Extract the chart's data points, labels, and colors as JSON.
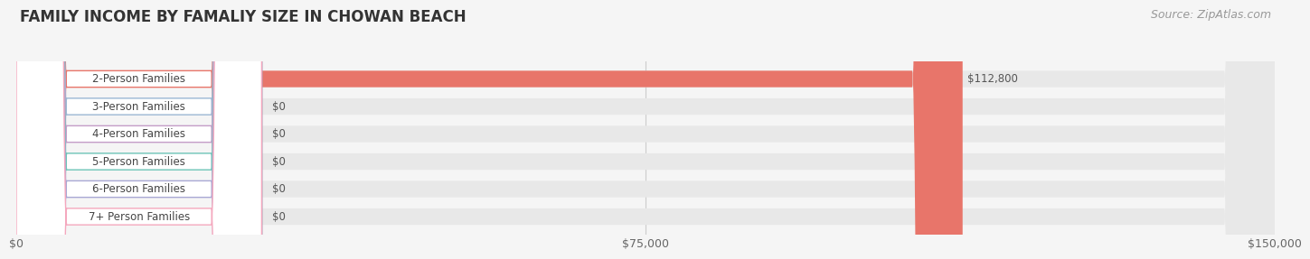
{
  "title": "FAMILY INCOME BY FAMALIY SIZE IN CHOWAN BEACH",
  "source": "Source: ZipAtlas.com",
  "categories": [
    "2-Person Families",
    "3-Person Families",
    "4-Person Families",
    "5-Person Families",
    "6-Person Families",
    "7+ Person Families"
  ],
  "values": [
    112800,
    0,
    0,
    0,
    0,
    0
  ],
  "bar_colors": [
    "#E8756A",
    "#9BB8D4",
    "#C49DC8",
    "#6DC4B8",
    "#A9A8D4",
    "#F4A8BE"
  ],
  "xlim": [
    0,
    150000
  ],
  "xticks": [
    0,
    75000,
    150000
  ],
  "xtick_labels": [
    "$0",
    "$75,000",
    "$150,000"
  ],
  "background_color": "#f5f5f5",
  "bar_bg_color": "#e8e8e8",
  "title_fontsize": 12,
  "source_fontsize": 9,
  "label_fontsize": 8.5
}
